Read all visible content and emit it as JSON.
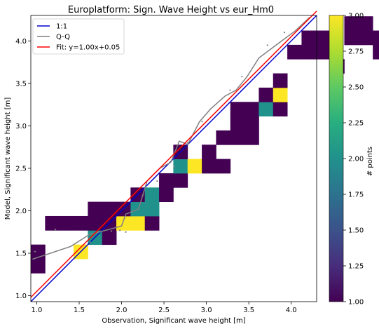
{
  "chart_data": {
    "type": "heatmap",
    "title": "Europlatform: Sign. Wave Height vs eur_Hm0",
    "xlabel": "Observation, Significant wave height [m]",
    "ylabel": "Model, Significant wave height [m]",
    "xlim": [
      0.93,
      4.3
    ],
    "ylim": [
      0.93,
      4.3
    ],
    "xticks": [
      1.0,
      1.5,
      2.0,
      2.5,
      3.0,
      3.5,
      4.0
    ],
    "yticks": [
      1.0,
      1.5,
      2.0,
      2.5,
      3.0,
      3.5,
      4.0
    ],
    "xtick_labels": [
      "1.0",
      "1.5",
      "2.0",
      "2.5",
      "3.0",
      "3.5",
      "4.0"
    ],
    "ytick_labels": [
      "1.0",
      "1.5",
      "2.0",
      "2.5",
      "3.0",
      "3.5",
      "4.0"
    ],
    "bin_size": 0.168,
    "bin_origin": 0.93,
    "grid": false,
    "legend_position": "top-left",
    "colorbar": {
      "label": "# points",
      "range": [
        1.0,
        3.0
      ],
      "ticks": [
        1.0,
        1.25,
        1.5,
        1.75,
        2.0,
        2.25,
        2.5,
        2.75,
        3.0
      ],
      "tick_labels": [
        "1.00",
        "1.25",
        "1.50",
        "1.75",
        "2.00",
        "2.25",
        "2.50",
        "2.75",
        "3.00"
      ]
    },
    "cells": [
      {
        "i": 0,
        "j": 2,
        "count": 1
      },
      {
        "i": 0,
        "j": 3,
        "count": 1
      },
      {
        "i": 1,
        "j": 5,
        "count": 1
      },
      {
        "i": 2,
        "j": 5,
        "count": 1
      },
      {
        "i": 3,
        "j": 5,
        "count": 1
      },
      {
        "i": 3,
        "j": 3,
        "count": 3
      },
      {
        "i": 4,
        "j": 4,
        "count": 2
      },
      {
        "i": 4,
        "j": 5,
        "count": 1
      },
      {
        "i": 4,
        "j": 6,
        "count": 1
      },
      {
        "i": 5,
        "j": 4,
        "count": 1
      },
      {
        "i": 5,
        "j": 5,
        "count": 1
      },
      {
        "i": 5,
        "j": 6,
        "count": 1
      },
      {
        "i": 6,
        "j": 5,
        "count": 3
      },
      {
        "i": 6,
        "j": 6,
        "count": 1
      },
      {
        "i": 7,
        "j": 5,
        "count": 3
      },
      {
        "i": 7,
        "j": 6,
        "count": 2
      },
      {
        "i": 7,
        "j": 7,
        "count": 1
      },
      {
        "i": 8,
        "j": 5,
        "count": 1
      },
      {
        "i": 8,
        "j": 6,
        "count": 2
      },
      {
        "i": 8,
        "j": 7,
        "count": 2
      },
      {
        "i": 9,
        "j": 7,
        "count": 1
      },
      {
        "i": 9,
        "j": 8,
        "count": 1
      },
      {
        "i": 10,
        "j": 8,
        "count": 1
      },
      {
        "i": 10,
        "j": 9,
        "count": 2
      },
      {
        "i": 10,
        "j": 10,
        "count": 1
      },
      {
        "i": 11,
        "j": 9,
        "count": 3
      },
      {
        "i": 12,
        "j": 9,
        "count": 1
      },
      {
        "i": 12,
        "j": 10,
        "count": 1
      },
      {
        "i": 13,
        "j": 9,
        "count": 1
      },
      {
        "i": 13,
        "j": 11,
        "count": 1
      },
      {
        "i": 14,
        "j": 11,
        "count": 1
      },
      {
        "i": 14,
        "j": 12,
        "count": 1
      },
      {
        "i": 14,
        "j": 13,
        "count": 1
      },
      {
        "i": 15,
        "j": 11,
        "count": 1
      },
      {
        "i": 15,
        "j": 12,
        "count": 1
      },
      {
        "i": 15,
        "j": 13,
        "count": 1
      },
      {
        "i": 16,
        "j": 13,
        "count": 2
      },
      {
        "i": 16,
        "j": 14,
        "count": 1
      },
      {
        "i": 17,
        "j": 13,
        "count": 1
      },
      {
        "i": 17,
        "j": 14,
        "count": 3
      },
      {
        "i": 17,
        "j": 15,
        "count": 1
      },
      {
        "i": 18,
        "j": 17,
        "count": 1
      },
      {
        "i": 19,
        "j": 17,
        "count": 1
      },
      {
        "i": 19,
        "j": 18,
        "count": 1
      },
      {
        "i": 20,
        "j": 17,
        "count": 1
      },
      {
        "i": 20,
        "j": 18,
        "count": 1
      },
      {
        "i": 21,
        "j": 16,
        "count": 1
      },
      {
        "i": 22,
        "j": 18,
        "count": 1
      },
      {
        "i": 22,
        "j": 19,
        "count": 1
      },
      {
        "i": 23,
        "j": 18,
        "count": 1
      },
      {
        "i": 23,
        "j": 19,
        "count": 1
      },
      {
        "i": 24,
        "j": 17,
        "count": 1
      },
      {
        "i": 24,
        "j": 18,
        "count": 1
      },
      {
        "i": 25,
        "j": 18,
        "count": 1
      },
      {
        "i": 25,
        "j": 19,
        "count": 2
      }
    ],
    "series": [
      {
        "name": "1:1",
        "color": "#0000cc",
        "x": [
          0.93,
          4.3
        ],
        "y": [
          0.93,
          4.3
        ]
      },
      {
        "name": "Q-Q",
        "color": "#808080",
        "x": [
          0.95,
          1.4,
          1.62,
          1.85,
          2.0,
          2.05,
          2.2,
          2.3,
          2.45,
          2.58,
          2.68,
          2.78,
          2.92,
          3.05,
          3.22,
          3.35,
          3.48,
          3.62,
          3.82,
          4.05,
          4.22
        ],
        "y": [
          1.43,
          1.58,
          1.72,
          1.78,
          1.82,
          1.96,
          2.02,
          2.35,
          2.5,
          2.57,
          2.82,
          2.78,
          3.05,
          3.2,
          3.35,
          3.42,
          3.58,
          3.8,
          3.95,
          4.12,
          4.28
        ]
      },
      {
        "name": "Fit: y=1.00x+0.05",
        "color": "#ff0000",
        "x": [
          0.93,
          4.3
        ],
        "y": [
          0.98,
          4.35
        ]
      }
    ],
    "points": [
      {
        "x": 0.98,
        "y": 1.52
      },
      {
        "x": 1.22,
        "y": 1.78
      },
      {
        "x": 1.63,
        "y": 1.63
      },
      {
        "x": 1.72,
        "y": 1.75
      },
      {
        "x": 1.88,
        "y": 1.76
      },
      {
        "x": 1.98,
        "y": 1.77
      },
      {
        "x": 2.05,
        "y": 1.75
      },
      {
        "x": 2.25,
        "y": 2.18
      },
      {
        "x": 2.42,
        "y": 2.35
      },
      {
        "x": 2.62,
        "y": 2.52
      },
      {
        "x": 2.78,
        "y": 2.8
      },
      {
        "x": 2.95,
        "y": 3.05
      },
      {
        "x": 3.28,
        "y": 3.42
      },
      {
        "x": 3.42,
        "y": 3.58
      },
      {
        "x": 3.72,
        "y": 3.95
      },
      {
        "x": 3.92,
        "y": 4.1
      },
      {
        "x": 4.12,
        "y": 4.18
      }
    ]
  }
}
